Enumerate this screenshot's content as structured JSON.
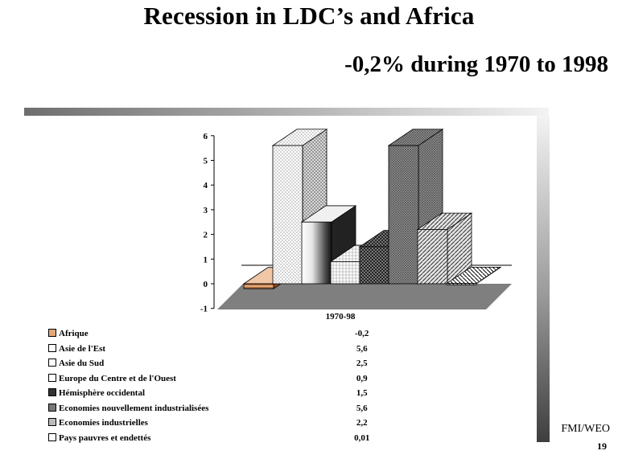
{
  "slide": {
    "title": "Recession in LDC’s and Africa",
    "subtitle": "-0,2% during 1970 to 1998",
    "source": "FMI/WEO",
    "page_number": "19"
  },
  "chart_data": {
    "type": "bar",
    "categories": [
      "1970-98"
    ],
    "xlabel": "1970-98",
    "ylim": [
      -1,
      6
    ],
    "yticks": [
      "-1",
      "0",
      "1",
      "2",
      "3",
      "4",
      "5",
      "6"
    ],
    "grid": false,
    "series": [
      {
        "name": "Afrique",
        "values": [
          -0.2
        ],
        "label": "-0,2",
        "color": "#e0a070"
      },
      {
        "name": "Asie de l'Est",
        "values": [
          5.6
        ],
        "label": "5,6",
        "color": "#ffffff"
      },
      {
        "name": "Asie du Sud",
        "values": [
          2.5
        ],
        "label": "2,5",
        "color": "#ffffff"
      },
      {
        "name": "Europe du Centre et de l'Ouest",
        "values": [
          0.9
        ],
        "label": "0,9",
        "color": "#ffffff"
      },
      {
        "name": "Hémisphère occidental",
        "values": [
          1.5
        ],
        "label": "1,5",
        "color": "#555555"
      },
      {
        "name": "Economies nouvellement industrialisées",
        "values": [
          5.6
        ],
        "label": "5,6",
        "color": "#888888"
      },
      {
        "name": "Economies industrielles",
        "values": [
          2.2
        ],
        "label": "2,2",
        "color": "#aaaaaa"
      },
      {
        "name": "Pays pauvres et endettés",
        "values": [
          0.01
        ],
        "label": "0,01",
        "color": "#ffffff"
      }
    ]
  }
}
